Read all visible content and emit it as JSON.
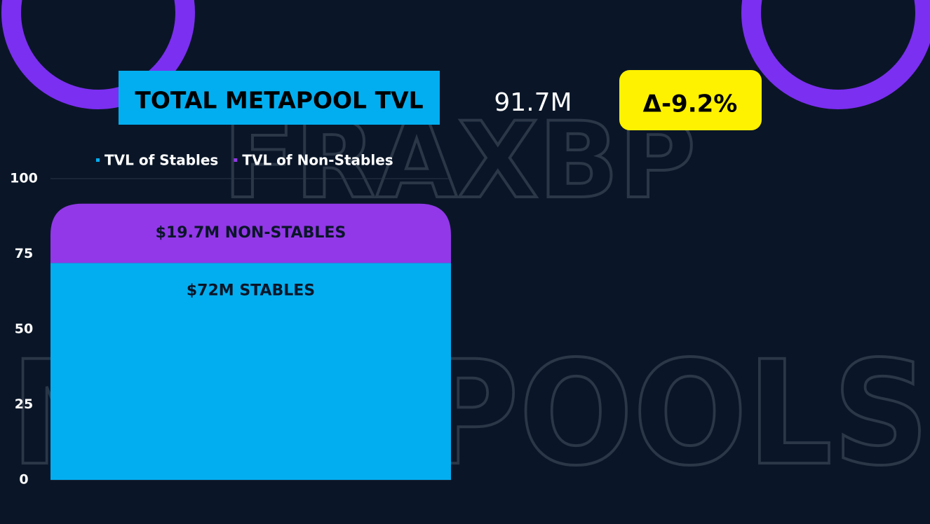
{
  "header": {
    "total": "91.7M",
    "change": "Δ-9.2%"
  },
  "watermark": [
    "FRAXBP",
    "METAPOOLS"
  ],
  "chart_data": {
    "type": "bar",
    "stacked": true,
    "title": "TOTAL METAPOOL TVL",
    "categories": [
      null
    ],
    "series": [
      {
        "name": "TVL of Stables",
        "color": "#03aef0",
        "values": [
          72
        ],
        "value_labels": [
          "$72M STABLES"
        ]
      },
      {
        "name": "TVL of Non-Stables",
        "color": "#9238e8",
        "values": [
          19.7
        ],
        "value_labels": [
          "$19.7M NON-STABLES"
        ]
      }
    ],
    "ylim": [
      0,
      100
    ],
    "yticks": [
      0,
      25,
      50,
      75,
      100
    ],
    "grid": true
  }
}
